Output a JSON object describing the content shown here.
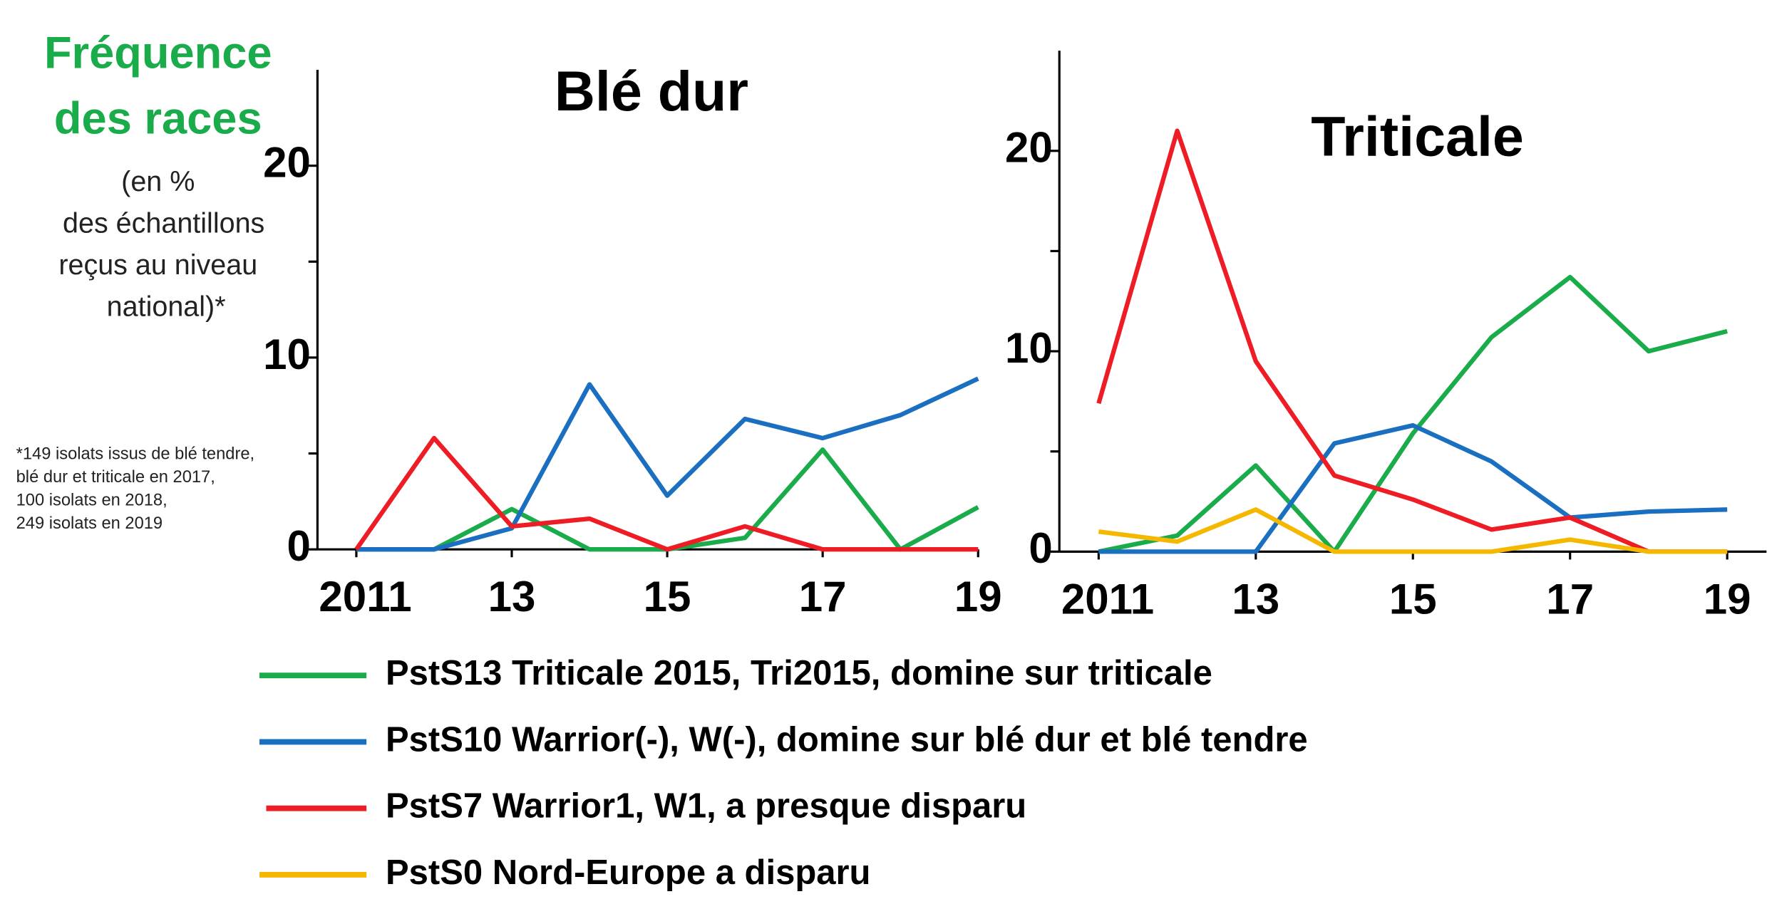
{
  "heading": {
    "title_lines": [
      "Fréquence",
      "des races"
    ],
    "unit_lines": [
      "(en %",
      "des échantillons",
      "reçus au niveau",
      "national)*"
    ]
  },
  "footnote_lines": [
    "*149 isolats issus de blé tendre,",
    "blé dur et triticale en 2017,",
    "100 isolats en 2018,",
    "249 isolats en 2019"
  ],
  "legend": [
    {
      "name": "PstS13 Triticale 2015, Tri2015, domine sur triticale",
      "color": "#1aac4a"
    },
    {
      "name": "PstS10 Warrior(-), W(-), domine sur blé dur et blé tendre",
      "color": "#1a6fc0"
    },
    {
      "name": "PstS7 Warrior1, W1, a presque disparu",
      "color": "#ee1c24"
    },
    {
      "name": "PstS0 Nord-Europe a disparu",
      "color": "#f5b800"
    }
  ],
  "chart_data": [
    {
      "type": "line",
      "title": "Blé dur",
      "x": [
        2011,
        2012,
        2013,
        2014,
        2015,
        2016,
        2017,
        2018,
        2019
      ],
      "xlim": [
        2010.5,
        2019
      ],
      "xticks": [
        {
          "value": 2011,
          "label": "2011"
        },
        {
          "value": 2013,
          "label": "13"
        },
        {
          "value": 2015,
          "label": "15"
        },
        {
          "value": 2017,
          "label": "17"
        },
        {
          "value": 2019,
          "label": "19"
        }
      ],
      "ylim": [
        0,
        25
      ],
      "yticks": [
        0,
        10,
        20
      ],
      "yminor_ticks": [
        5,
        15
      ],
      "series": [
        {
          "color": "#1aac4a",
          "values": [
            0,
            0,
            2.1,
            0,
            0,
            0.6,
            5.2,
            0,
            2.2
          ]
        },
        {
          "color": "#1a6fc0",
          "values": [
            0,
            0,
            1.1,
            8.6,
            2.8,
            6.8,
            5.8,
            7.0,
            8.9
          ]
        },
        {
          "color": "#ee1c24",
          "values": [
            0,
            5.8,
            1.2,
            1.6,
            0,
            1.2,
            0,
            0,
            0
          ]
        }
      ]
    },
    {
      "type": "line",
      "title": "Triticale",
      "x": [
        2011,
        2012,
        2013,
        2014,
        2015,
        2016,
        2017,
        2018,
        2019
      ],
      "xlim": [
        2010.5,
        2019.5
      ],
      "xticks": [
        {
          "value": 2011,
          "label": "2011"
        },
        {
          "value": 2013,
          "label": "13"
        },
        {
          "value": 2015,
          "label": "15"
        },
        {
          "value": 2017,
          "label": "17"
        },
        {
          "value": 2019,
          "label": "19"
        }
      ],
      "ylim": [
        0,
        25
      ],
      "yticks": [
        0,
        10,
        20
      ],
      "yminor_ticks": [
        5,
        15
      ],
      "series": [
        {
          "color": "#1aac4a",
          "values": [
            0,
            0.8,
            4.3,
            0,
            5.9,
            10.7,
            13.7,
            10.0,
            11.0
          ]
        },
        {
          "color": "#1a6fc0",
          "values": [
            0,
            0,
            0,
            5.4,
            6.3,
            4.5,
            1.7,
            2.0,
            2.1
          ]
        },
        {
          "color": "#ee1c24",
          "values": [
            7.4,
            21.0,
            9.5,
            3.8,
            2.6,
            1.1,
            1.7,
            0,
            0
          ]
        },
        {
          "color": "#f5b800",
          "values": [
            1.0,
            0.5,
            2.1,
            0,
            0,
            0,
            0.6,
            0,
            0
          ]
        }
      ]
    }
  ]
}
